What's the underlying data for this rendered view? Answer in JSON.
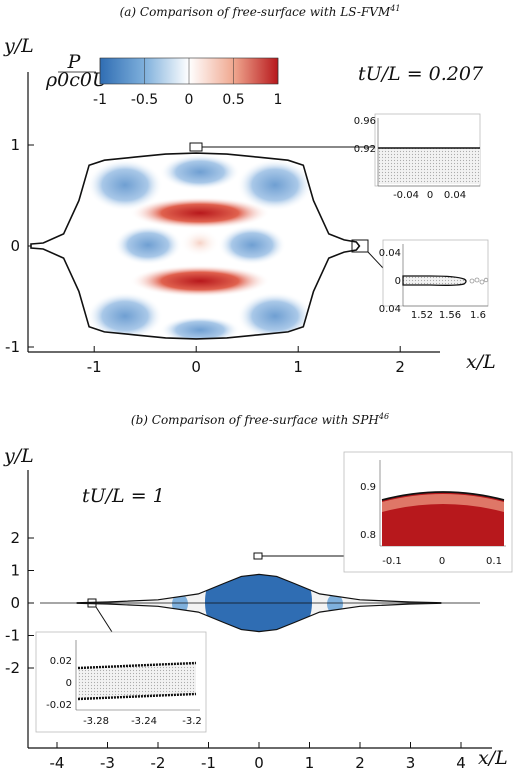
{
  "panels": {
    "a": {
      "title": "(a) Comparison of free-surface with LS-FVM",
      "ref": "41"
    },
    "b": {
      "title": "(b) Comparison of free-surface with SPH",
      "ref": "46"
    }
  },
  "colorbar": {
    "label_num": "P",
    "label_den": "ρ0c0U",
    "ticks": [
      "-1",
      "-0.5",
      "0",
      "0.5",
      "1"
    ],
    "colors": [
      "#2f6db3",
      "#7fb0dc",
      "#ffffff",
      "#f0a890",
      "#b7181c"
    ]
  },
  "chart_data": [
    {
      "type": "contour",
      "time_label": "tU/L = 0.207",
      "xlabel": "x/L",
      "ylabel": "y/L",
      "xlim": [
        -1.65,
        2.45
      ],
      "ylim": [
        -1.05,
        1.4
      ],
      "xticks": [
        "-1",
        "0",
        "1",
        "2"
      ],
      "yticks": [
        "-1",
        "0",
        "1"
      ],
      "outline_x": [
        -1.62,
        -1.5,
        -1.3,
        -1.15,
        -1.05,
        -0.9,
        -0.6,
        -0.3,
        0,
        0.3,
        0.6,
        0.9,
        1.05,
        1.15,
        1.3,
        1.45,
        1.57,
        1.6
      ],
      "outline_y": [
        0.02,
        0.03,
        0.12,
        0.45,
        0.8,
        0.85,
        0.88,
        0.91,
        0.92,
        0.91,
        0.88,
        0.85,
        0.8,
        0.45,
        0.12,
        0.06,
        0.04,
        0.0
      ],
      "insets": [
        {
          "id": "top",
          "xticks": [
            "-0.04",
            "0",
            "0.04"
          ],
          "yticks": [
            "0.96",
            "0.92"
          ]
        },
        {
          "id": "tip",
          "xticks": [
            "1.52",
            "1.56",
            "1.6"
          ],
          "yticks": [
            "0.04",
            "0",
            "0.04"
          ]
        }
      ]
    },
    {
      "type": "contour",
      "time_label": "tU/L = 1",
      "xlabel": "x/L",
      "ylabel": "y/L",
      "xlim": [
        -4.45,
        4.45
      ],
      "ylim": [
        -2.4,
        2.4
      ],
      "xticks": [
        "-4",
        "-3",
        "-2",
        "-1",
        "0",
        "1",
        "2",
        "3",
        "4"
      ],
      "yticks": [
        "2",
        "1",
        "0",
        "-1",
        "-2"
      ],
      "outline_x": [
        -3.6,
        -3.0,
        -2.0,
        -1.2,
        -0.7,
        -0.35,
        0,
        0.35,
        0.7,
        1.2,
        2.0,
        3.0,
        3.6
      ],
      "outline_y": [
        0.01,
        0.03,
        0.1,
        0.28,
        0.6,
        0.82,
        0.88,
        0.82,
        0.6,
        0.28,
        0.1,
        0.03,
        0.01
      ],
      "insets": [
        {
          "id": "crest",
          "xticks": [
            "-0.1",
            "0",
            "0.1"
          ],
          "yticks": [
            "0.9",
            "0.8"
          ]
        },
        {
          "id": "tail",
          "xticks": [
            "-3.28",
            "-3.24",
            "-3.2"
          ],
          "yticks": [
            "0.02",
            "0",
            "-0.02"
          ]
        }
      ]
    }
  ]
}
